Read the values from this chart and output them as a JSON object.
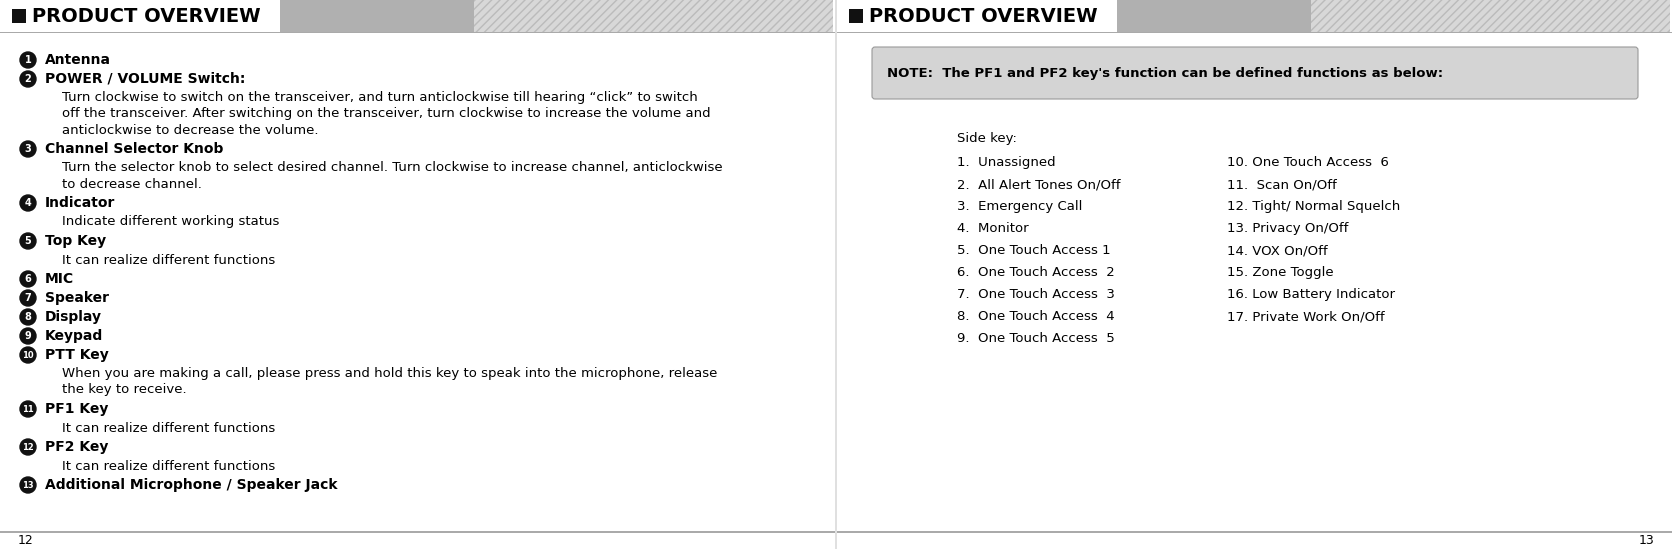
{
  "bg_color": "#ffffff",
  "header_title": "PRODUCT OVERVIEW",
  "page_num_left": "12",
  "page_num_right": "13",
  "left_panel": {
    "items": [
      {
        "num": "1",
        "bold": "Antenna",
        "body": []
      },
      {
        "num": "2",
        "bold": "POWER / VOLUME Switch:",
        "body": [
          "Turn clockwise to switch on the transceiver, and turn anticlockwise till hearing “click” to switch",
          "off the transceiver. After switching on the transceiver, turn clockwise to increase the volume and",
          "anticlockwise to decrease the volume."
        ]
      },
      {
        "num": "3",
        "bold": "Channel Selector Knob",
        "body": [
          "Turn the selector knob to select desired channel. Turn clockwise to increase channel, anticlockwise",
          "to decrease channel."
        ]
      },
      {
        "num": "4",
        "bold": "Indicator",
        "body": [
          "Indicate different working status"
        ]
      },
      {
        "num": "5",
        "bold": "Top Key",
        "body": [
          "It can realize different functions"
        ]
      },
      {
        "num": "6",
        "bold": "MIC",
        "body": []
      },
      {
        "num": "7",
        "bold": "Speaker",
        "body": []
      },
      {
        "num": "8",
        "bold": "Display",
        "body": []
      },
      {
        "num": "9",
        "bold": "Keypad",
        "body": []
      },
      {
        "num": "10",
        "bold": "PTT Key",
        "body": [
          "When you are making a call, please press and hold this key to speak into the microphone, release",
          "the key to receive."
        ]
      },
      {
        "num": "11",
        "bold": "PF1 Key",
        "body": [
          "It can realize different functions"
        ]
      },
      {
        "num": "12",
        "bold": "PF2 Key",
        "body": [
          "It can realize different functions"
        ]
      },
      {
        "num": "13",
        "bold": "Additional Microphone / Speaker Jack",
        "body": []
      }
    ]
  },
  "right_panel": {
    "note_text": "NOTE:  The PF1 and PF2 key's function can be defined functions as below:",
    "note_bg": "#d4d4d4",
    "side_key_label": "Side key:",
    "col1": [
      "1.  Unassigned",
      "2.  All Alert Tones On/Off",
      "3.  Emergency Call",
      "4.  Monitor",
      "5.  One Touch Access 1",
      "6.  One Touch Access  2",
      "7.  One Touch Access  3",
      "8.  One Touch Access  4",
      "9.  One Touch Access  5"
    ],
    "col2": [
      "10. One Touch Access  6",
      "11.  Scan On/Off",
      "12. Tight/ Normal Squelch",
      "13. Privacy On/Off",
      "14. VOX On/Off",
      "15. Zone Toggle",
      "16. Low Battery Indicator",
      "17. Private Work On/Off"
    ]
  },
  "header_fontsize": 14,
  "label_fontsize": 10,
  "body_fontsize": 9.5,
  "list_fontsize": 9.5,
  "note_fontsize": 9.5,
  "page_fontsize": 9
}
